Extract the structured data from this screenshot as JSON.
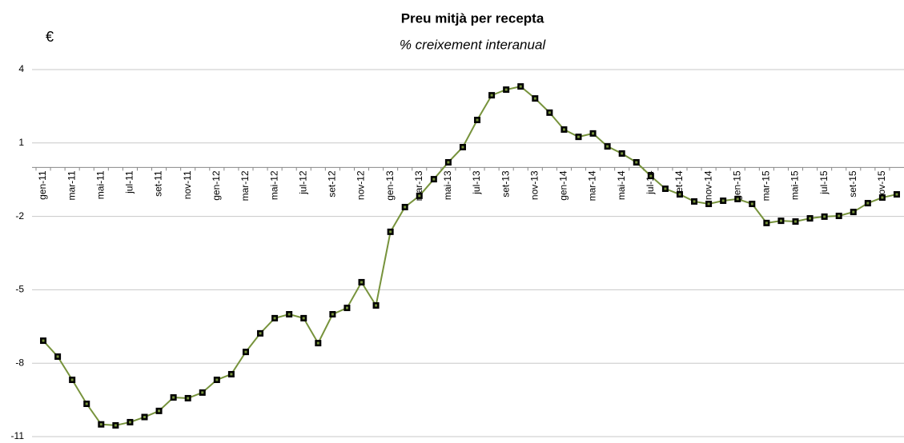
{
  "chart_data": {
    "type": "line",
    "title": "Preu mitjà per recepta",
    "subtitle": "% creixement interanual",
    "y_label": "€",
    "categories": [
      "gen-11",
      null,
      "mar-11",
      null,
      "mai-11",
      null,
      "jul-11",
      null,
      "set-11",
      null,
      "nov-11",
      null,
      "gen-12",
      null,
      "mar-12",
      null,
      "mai-12",
      null,
      "jul-12",
      null,
      "set-12",
      null,
      "nov-12",
      null,
      "gen-13",
      null,
      "mar-13",
      null,
      "mai-13",
      null,
      "jul-13",
      null,
      "set-13",
      null,
      "nov-13",
      null,
      "gen-14",
      null,
      "mar-14",
      null,
      "mai-14",
      null,
      "jul-14",
      null,
      "set-14",
      null,
      "nov-14",
      null,
      "gen-15",
      null,
      "mar-15",
      null,
      "mai-15",
      null,
      "jul-15",
      null,
      "set-15",
      null,
      "nov-15",
      null
    ],
    "series": [
      {
        "name": "Preu mitjà per recepta",
        "color": "#77933c",
        "marker_color": "#000000",
        "values": [
          -7.08,
          -7.73,
          -8.68,
          -9.66,
          -10.5,
          -10.54,
          -10.41,
          -10.2,
          -9.95,
          -9.4,
          -9.43,
          -9.2,
          -8.68,
          -8.45,
          -7.54,
          -6.78,
          -6.16,
          -6.0,
          -6.16,
          -7.18,
          -6.0,
          -5.74,
          -4.69,
          -5.64,
          -2.63,
          -1.62,
          -1.16,
          -0.48,
          0.21,
          0.83,
          1.94,
          2.95,
          3.18,
          3.31,
          2.82,
          2.24,
          1.55,
          1.25,
          1.39,
          0.86,
          0.57,
          0.21,
          -0.35,
          -0.87,
          -1.1,
          -1.39,
          -1.49,
          -1.36,
          -1.29,
          -1.49,
          -2.27,
          -2.18,
          -2.21,
          -2.08,
          -2.01,
          -1.98,
          -1.82,
          -1.46,
          -1.23,
          -1.1
        ]
      }
    ],
    "ylim": [
      -11,
      4
    ],
    "yticks": [
      4,
      1,
      -2,
      -5,
      -8,
      -11
    ],
    "grid": true
  }
}
